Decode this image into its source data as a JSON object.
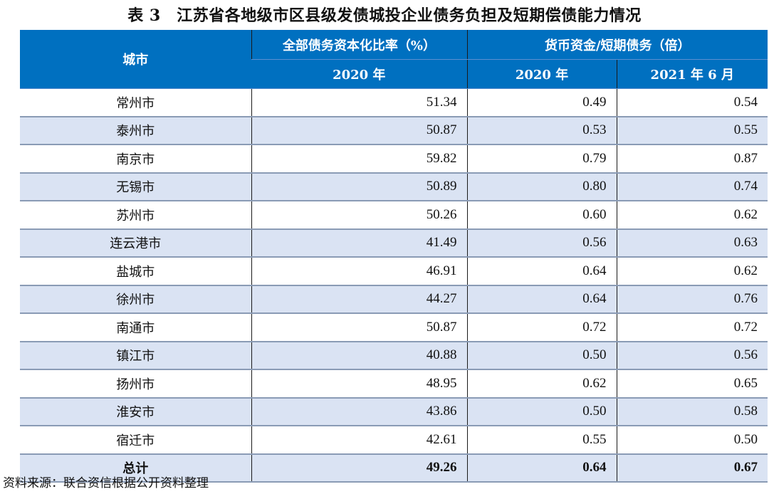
{
  "title": "表 3　江苏省各地级市区县级发债城投企业债务负担及短期偿债能力情况",
  "header": {
    "city": "城市",
    "group1": "全部债务资本化比率（%）",
    "group2": "货币资金/短期债务（倍）",
    "sub1": "2020 年",
    "sub2": "2020 年",
    "sub3": "2021 年 6 月"
  },
  "colors": {
    "header_bg": "#0070c0",
    "stripe_bg": "#dae3f3"
  },
  "rows": [
    {
      "city": "常州市",
      "ratio2020": "51.34",
      "cash2020": "0.49",
      "cash202106": "0.54"
    },
    {
      "city": "泰州市",
      "ratio2020": "50.87",
      "cash2020": "0.53",
      "cash202106": "0.55"
    },
    {
      "city": "南京市",
      "ratio2020": "59.82",
      "cash2020": "0.79",
      "cash202106": "0.87"
    },
    {
      "city": "无锡市",
      "ratio2020": "50.89",
      "cash2020": "0.80",
      "cash202106": "0.74"
    },
    {
      "city": "苏州市",
      "ratio2020": "50.26",
      "cash2020": "0.60",
      "cash202106": "0.62"
    },
    {
      "city": "连云港市",
      "ratio2020": "41.49",
      "cash2020": "0.56",
      "cash202106": "0.63"
    },
    {
      "city": "盐城市",
      "ratio2020": "46.91",
      "cash2020": "0.64",
      "cash202106": "0.62"
    },
    {
      "city": "徐州市",
      "ratio2020": "44.27",
      "cash2020": "0.64",
      "cash202106": "0.76"
    },
    {
      "city": "南通市",
      "ratio2020": "50.87",
      "cash2020": "0.72",
      "cash202106": "0.72"
    },
    {
      "city": "镇江市",
      "ratio2020": "40.88",
      "cash2020": "0.50",
      "cash202106": "0.56"
    },
    {
      "city": "扬州市",
      "ratio2020": "48.95",
      "cash2020": "0.62",
      "cash202106": "0.65"
    },
    {
      "city": "淮安市",
      "ratio2020": "43.86",
      "cash2020": "0.50",
      "cash202106": "0.58"
    },
    {
      "city": "宿迁市",
      "ratio2020": "42.61",
      "cash2020": "0.55",
      "cash202106": "0.50"
    }
  ],
  "total": {
    "city": "总计",
    "ratio2020": "49.26",
    "cash2020": "0.64",
    "cash202106": "0.67"
  },
  "source": "资料来源：联合资信根据公开资料整理"
}
